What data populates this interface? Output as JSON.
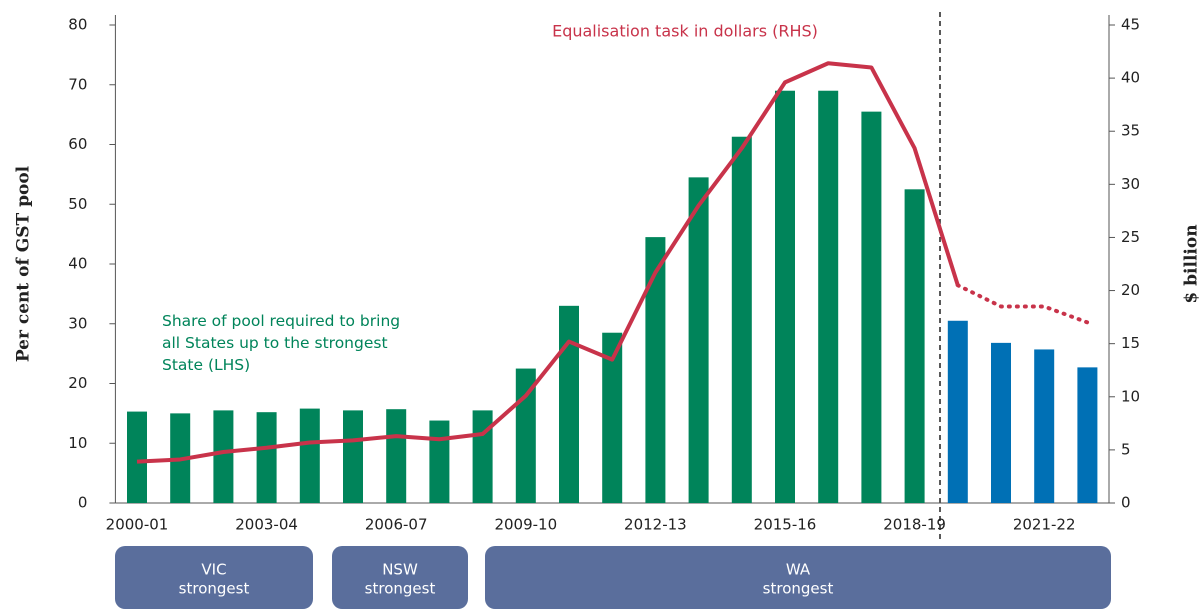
{
  "chart_data": {
    "type": "bar_line",
    "y_label": "Per cent of GST pool",
    "y2_label": "$ billion",
    "categories": [
      "2000-01",
      null,
      null,
      "2003-04",
      null,
      null,
      "2006-07",
      null,
      null,
      "2009-10",
      null,
      null,
      "2012-13",
      null,
      null,
      "2015-16",
      null,
      null,
      "2018-19",
      null,
      null,
      "2021-22",
      null
    ],
    "bars": {
      "name": "Share of pool required to bring all States up to the strongest State (LHS)",
      "name_color": "#00845a",
      "values": [
        15.3,
        15.0,
        15.5,
        15.2,
        15.8,
        15.5,
        15.7,
        13.8,
        15.5,
        22.5,
        33.0,
        28.5,
        44.5,
        54.5,
        61.3,
        69.0,
        69.0,
        65.5,
        52.5,
        30.5,
        26.8,
        25.7,
        22.7
      ],
      "colors": [
        "#00845a",
        "#00845a",
        "#00845a",
        "#00845a",
        "#00845a",
        "#00845a",
        "#00845a",
        "#00845a",
        "#00845a",
        "#00845a",
        "#00845a",
        "#00845a",
        "#00845a",
        "#00845a",
        "#00845a",
        "#00845a",
        "#00845a",
        "#00845a",
        "#00845a",
        "#0070b5",
        "#0070b5",
        "#0070b5",
        "#0070b5"
      ]
    },
    "lines": [
      {
        "name": "Equalisation task in dollars (RHS)",
        "color": "#c8334a",
        "axis": "y2",
        "dash": false,
        "values": [
          3.9,
          4.1,
          4.8,
          5.2,
          5.7,
          5.9,
          6.3,
          6.0,
          6.5,
          10.1,
          15.2,
          13.5,
          21.7,
          28.0,
          33.4,
          39.6,
          41.4,
          41.0,
          33.4,
          20.5,
          null,
          null,
          null
        ]
      },
      {
        "color": "#c8334a",
        "axis": "y2",
        "dash": true,
        "values": [
          null,
          null,
          null,
          null,
          null,
          null,
          null,
          null,
          null,
          null,
          null,
          null,
          null,
          null,
          null,
          null,
          null,
          null,
          null,
          20.5,
          18.5,
          18.5,
          17.0
        ]
      }
    ],
    "ylim": [
      0,
      80
    ],
    "yticks": [
      0,
      10,
      20,
      30,
      40,
      50,
      60,
      70,
      80
    ],
    "y2lim": [
      0,
      45
    ],
    "y2ticks": [
      0,
      5,
      10,
      15,
      20,
      25,
      30,
      35,
      40,
      45
    ],
    "bands": [
      {
        "lines": [
          "VIC",
          "strongest"
        ]
      },
      {
        "lines": [
          "NSW",
          "strongest"
        ]
      },
      {
        "lines": [
          "WA",
          "strongest"
        ]
      }
    ]
  }
}
